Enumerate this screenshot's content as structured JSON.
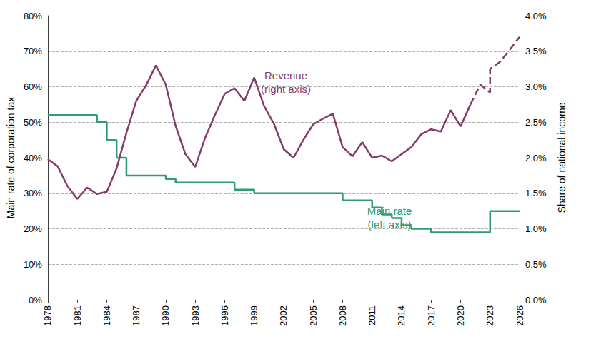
{
  "chart_data": {
    "type": "line",
    "grid": true,
    "xlim": [
      1978,
      2026
    ],
    "xticks": [
      1978,
      1981,
      1984,
      1987,
      1990,
      1993,
      1996,
      1999,
      2002,
      2005,
      2008,
      2011,
      2014,
      2017,
      2020,
      2023,
      2026
    ],
    "y_label": "Main rate of corporation tax",
    "ylim": [
      0,
      80
    ],
    "yticks": [
      {
        "value": 0,
        "label": "0%"
      },
      {
        "value": 10,
        "label": "10%"
      },
      {
        "value": 20,
        "label": "20%"
      },
      {
        "value": 30,
        "label": "30%"
      },
      {
        "value": 40,
        "label": "40%"
      },
      {
        "value": 50,
        "label": "50%"
      },
      {
        "value": 60,
        "label": "60%"
      },
      {
        "value": 70,
        "label": "70%"
      },
      {
        "value": 80,
        "label": "80%"
      }
    ],
    "y2_label": "Share of national income",
    "y2lim": [
      0,
      4
    ],
    "y2ticks": [
      {
        "value": 0,
        "label": "0.0%"
      },
      {
        "value": 0.5,
        "label": "0.5%"
      },
      {
        "value": 1,
        "label": "1.0%"
      },
      {
        "value": 1.5,
        "label": "1.5%"
      },
      {
        "value": 2,
        "label": "2.0%"
      },
      {
        "value": 2.5,
        "label": "2.5%"
      },
      {
        "value": 3,
        "label": "3.0%"
      },
      {
        "value": 3.5,
        "label": "3.5%"
      },
      {
        "value": 4,
        "label": "4.0%"
      }
    ],
    "series": [
      {
        "name": "Revenue\n(right axis)",
        "color": "#843c6c",
        "axis": "y2",
        "type": "line",
        "line_style": "solid",
        "x": [
          1978,
          1979,
          1980,
          1981,
          1982,
          1983,
          1984,
          1985,
          1986,
          1987,
          1988,
          1989,
          1990,
          1991,
          1992,
          1993,
          1994,
          1995,
          1996,
          1997,
          1998,
          1999,
          2000,
          2001,
          2002,
          2003,
          2004,
          2005,
          2006,
          2007,
          2008,
          2009,
          2010,
          2011,
          2012,
          2013,
          2014,
          2015,
          2016,
          2017,
          2018,
          2019,
          2020,
          2021
        ],
        "values": [
          1.98,
          1.88,
          1.6,
          1.42,
          1.58,
          1.49,
          1.52,
          1.85,
          2.35,
          2.8,
          3.02,
          3.3,
          3.03,
          2.45,
          2.05,
          1.87,
          2.28,
          2.6,
          2.9,
          2.98,
          2.8,
          3.13,
          2.73,
          2.48,
          2.12,
          2.0,
          2.25,
          2.47,
          2.55,
          2.62,
          2.15,
          2.02,
          2.22,
          2.0,
          2.03,
          1.95,
          2.05,
          2.15,
          2.33,
          2.4,
          2.37,
          2.67,
          2.44,
          2.75
        ]
      },
      {
        "color": "#843c6c",
        "axis": "y2",
        "type": "line",
        "line_style": "dashed",
        "x": [
          2021,
          2022,
          2023,
          2023,
          2024,
          2025,
          2026
        ],
        "values": [
          2.75,
          3.03,
          2.92,
          3.25,
          3.35,
          3.52,
          3.7
        ]
      },
      {
        "name": "Main rate\n(left axis)",
        "color": "#2e9c76",
        "axis": "y",
        "type": "step",
        "line_style": "solid",
        "x": [
          1978,
          1983,
          1984,
          1985,
          1986,
          1990,
          1991,
          1997,
          1999,
          2008,
          2011,
          2012,
          2013,
          2014,
          2015,
          2017,
          2023,
          2026
        ],
        "values": [
          52,
          50,
          45,
          40,
          35,
          34,
          33,
          31,
          30,
          28,
          26,
          24,
          23,
          21,
          20,
          19,
          25,
          25
        ]
      }
    ]
  }
}
